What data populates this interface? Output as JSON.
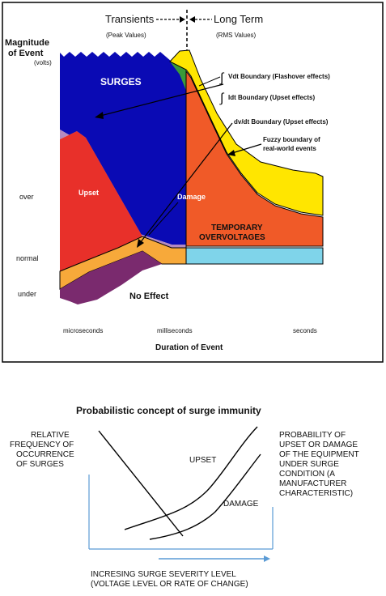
{
  "top": {
    "header_left": "Transients",
    "header_left_sub": "(Peak Values)",
    "header_right": "Long Term",
    "header_right_sub": "(RMS Values)",
    "ylabel_line1": "Magnitude",
    "ylabel_line2": "of Event",
    "ylabel_unit": "(volts)",
    "y_ticks": [
      "over",
      "normal",
      "under"
    ],
    "x_ticks": [
      "microseconds",
      "milliseconds",
      "seconds"
    ],
    "xlabel": "Duration of Event",
    "regions": {
      "surges": "SURGES",
      "upset": "Upset",
      "damage": "Damage",
      "temp_line1": "TEMPORARY",
      "temp_line2": "OVERVOLTAGES",
      "no_effect": "No Effect"
    },
    "annotations": {
      "vdt": "Vdt Boundary (Flashover effects)",
      "idt": "Idt Boundary (Upset effects)",
      "dvdt": "dv/dt Boundary (Upset effects)",
      "fuzzy_line1": "Fuzzy boundary of",
      "fuzzy_line2": "real-world events"
    },
    "colors": {
      "surges": "#0a0ab4",
      "upset": "#e8302a",
      "upset_boundary": "#b58ac0",
      "no_effect": "#7a2a6e",
      "normal_band": "#f7a93a",
      "normal_right": "#7fd4ea",
      "temporary": "#f05a28",
      "fuzzy": "#ffe600",
      "green": "#3a9a3a"
    }
  },
  "bottom": {
    "title": "Probabilistic concept of surge immunity",
    "left_label": [
      "RELATIVE",
      "FREQUENCY OF",
      "OCCURRENCE",
      "OF SURGES"
    ],
    "right_label": [
      "PROBABILITY OF",
      "UPSET OR DAMAGE",
      "OF THE EQUIPMENT",
      "UNDER SURGE",
      "CONDITION (A",
      "MANUFACTURER",
      "CHARACTERISTIC)"
    ],
    "curve_upset": "UPSET",
    "curve_damage": "DAMAGE",
    "xlabel_line1": "INCRESING SURGE SEVERITY LEVEL",
    "xlabel_line2": "(VOLTAGE LEVEL OR RATE OF CHANGE)",
    "axis_color": "#5b9bd5"
  }
}
